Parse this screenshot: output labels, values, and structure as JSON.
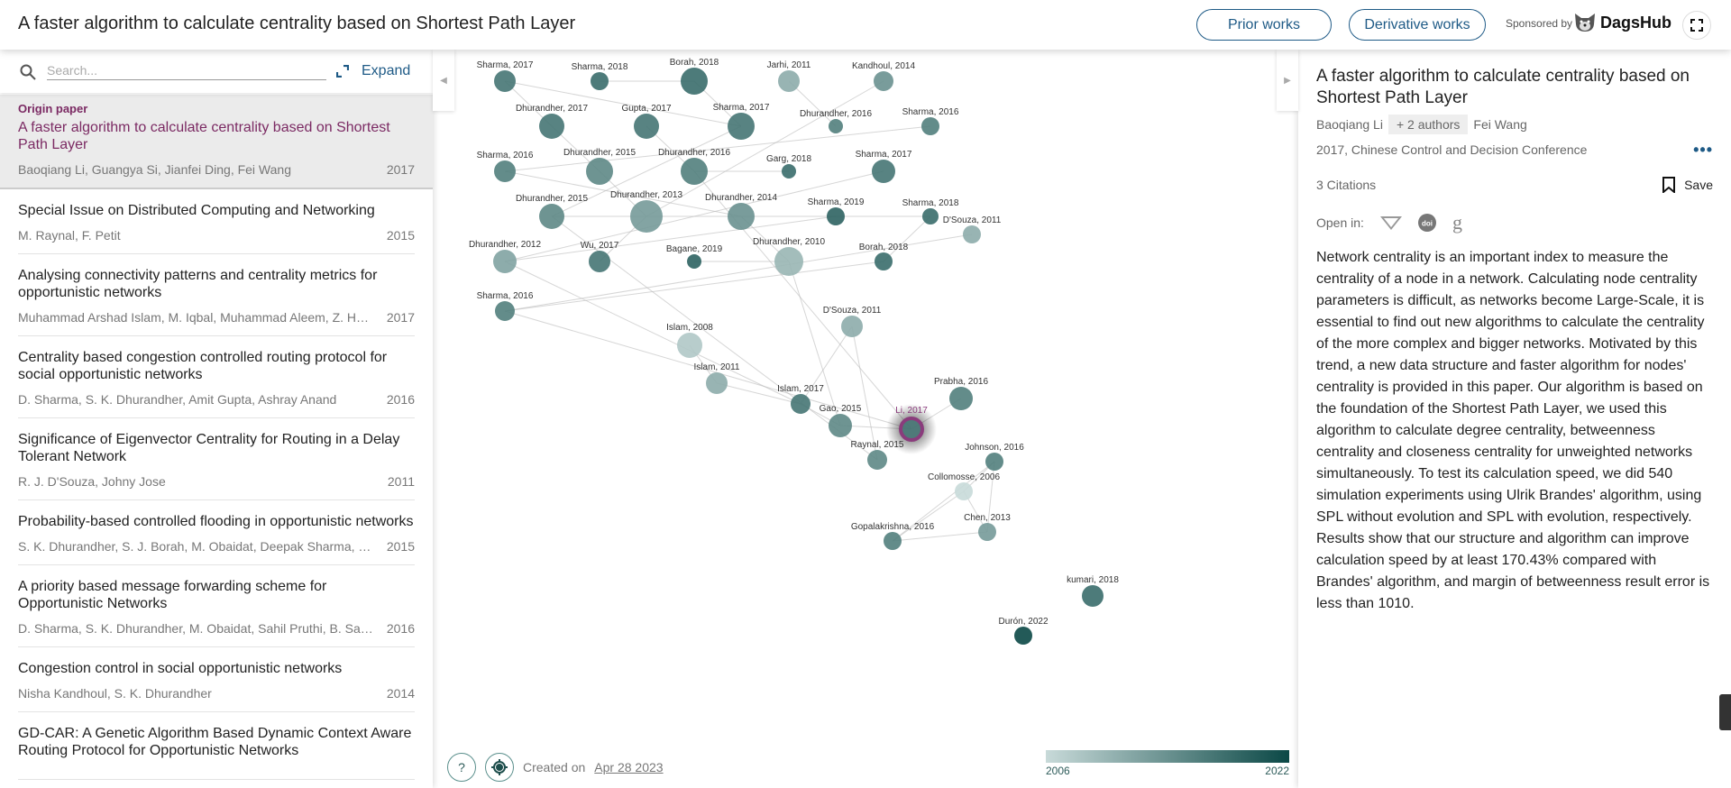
{
  "header": {
    "title": "A faster algorithm to calculate centrality based on Shortest Path Layer",
    "prior_works": "Prior works",
    "derivative_works": "Derivative works",
    "sponsored_by": "Sponsored by",
    "sponsor_name": "DagsHub"
  },
  "sidebar": {
    "search_placeholder": "Search...",
    "search_value": "",
    "expand_label": "Expand",
    "origin": {
      "label": "Origin paper",
      "title": "A faster algorithm to calculate centrality based on Shortest Path Layer",
      "authors": "Baoqiang Li, Guangya Si, Jianfei Ding, Fei Wang",
      "year": "2017"
    },
    "items": [
      {
        "title": "Special Issue on Distributed Computing and Networking",
        "authors": "M. Raynal, F. Petit",
        "year": "2015"
      },
      {
        "title": "Analysing connectivity patterns and centrality metrics for opportunistic networks",
        "authors": "Muhammad Arshad Islam, M. Iqbal, Muhammad Aleem, Z. Halim",
        "year": "2017"
      },
      {
        "title": "Centrality based congestion controlled routing protocol for social opportunistic networks",
        "authors": "D. Sharma, S. K. Dhurandher, Amit Gupta, Ashray Anand",
        "year": "2016"
      },
      {
        "title": "Significance of Eigenvector Centrality for Routing in a Delay Tolerant Network",
        "authors": "R. J. D'Souza, Johny Jose",
        "year": "2011"
      },
      {
        "title": "Probability-based controlled flooding in opportunistic networks",
        "authors": "S. K. Dhurandher, S. J. Borah, M. Obaidat, Deepak Sharma, Sahil…",
        "year": "2015"
      },
      {
        "title": "A priority based message forwarding scheme for Opportunistic Networks",
        "authors": "D. Sharma, S. K. Dhurandher, M. Obaidat, Sahil Pruthi, B. Sadoun",
        "year": "2016"
      },
      {
        "title": "Congestion control in social opportunistic networks",
        "authors": "Nisha Kandhoul, S. K. Dhurandher",
        "year": "2014"
      },
      {
        "title": "GD-CAR: A Genetic Algorithm Based Dynamic Context Aware Routing Protocol for Opportunistic Networks",
        "authors": "",
        "year": ""
      }
    ]
  },
  "graph": {
    "nodes": [
      {
        "label": "Sharma, 2017",
        "year": 2017
      },
      {
        "label": "Sharma, 2018",
        "year": 2018
      },
      {
        "label": "Borah, 2018",
        "year": 2018
      },
      {
        "label": "Jarhi, 2011",
        "year": 2011
      },
      {
        "label": "Kandhoul, 2014",
        "year": 2014
      },
      {
        "label": "Dhurandher, 2017",
        "year": 2017
      },
      {
        "label": "Gupta, 2017",
        "year": 2017
      },
      {
        "label": "Sharma, 2017",
        "year": 2017
      },
      {
        "label": "Dhurandher, 2016",
        "year": 2016
      },
      {
        "label": "Sharma, 2016",
        "year": 2016
      },
      {
        "label": "Sharma, 2016",
        "year": 2016
      },
      {
        "label": "Dhurandher, 2015",
        "year": 2015
      },
      {
        "label": "Dhurandher, 2016",
        "year": 2016
      },
      {
        "label": "Garg, 2018",
        "year": 2018
      },
      {
        "label": "Sharma, 2017",
        "year": 2017
      },
      {
        "label": "Dhurandher, 2015",
        "year": 2015
      },
      {
        "label": "Dhurandher, 2013",
        "year": 2013
      },
      {
        "label": "Dhurandher, 2014",
        "year": 2014
      },
      {
        "label": "Sharma, 2019",
        "year": 2019
      },
      {
        "label": "Sharma, 2018",
        "year": 2018
      },
      {
        "label": "Dhurandher, 2012",
        "year": 2012
      },
      {
        "label": "Wu, 2017",
        "year": 2017
      },
      {
        "label": "Bagane, 2019",
        "year": 2019
      },
      {
        "label": "Dhurandher, 2010",
        "year": 2010
      },
      {
        "label": "Borah, 2018",
        "year": 2018
      },
      {
        "label": "Sharma, 2016",
        "year": 2016
      },
      {
        "label": "D'Souza, 2011",
        "year": 2011
      },
      {
        "label": "D'Souza, 2011",
        "year": 2011
      },
      {
        "label": "Islam, 2008",
        "year": 2008
      },
      {
        "label": "Islam, 2011",
        "year": 2011
      },
      {
        "label": "Islam, 2017",
        "year": 2017
      },
      {
        "label": "Gao, 2015",
        "year": 2015
      },
      {
        "label": "Li, 2017",
        "year": 2017,
        "origin": true
      },
      {
        "label": "Prabha, 2016",
        "year": 2016
      },
      {
        "label": "Raynal, 2015",
        "year": 2015
      },
      {
        "label": "Johnson, 2016",
        "year": 2016
      },
      {
        "label": "Collomosse, 2006",
        "year": 2006
      },
      {
        "label": "Gopalakrishna, 2016",
        "year": 2016
      },
      {
        "label": "Chen, 2013",
        "year": 2013
      },
      {
        "label": "kumari, 2018",
        "year": 2018
      },
      {
        "label": "Durón, 2022",
        "year": 2022
      }
    ],
    "colors": {
      "min": "#c8dad9",
      "max": "#0b4846",
      "origin_ring": "#8a3c7c"
    },
    "legend": {
      "min_year": "2006",
      "max_year": "2022"
    }
  },
  "footer": {
    "created_prefix": "Created on",
    "created_date": "Apr 28 2023"
  },
  "details": {
    "title": "A faster algorithm to calculate centrality based on Shortest Path Layer",
    "first_author": "Baoqiang Li",
    "more_authors": "+ 2 authors",
    "last_author": "Fei Wang",
    "venue": "2017, Chinese Control and Decision Conference",
    "citations": "3 Citations",
    "save_label": "Save",
    "open_in_label": "Open in:",
    "abstract": "Network centrality is an important index to measure the centrality of a node in a network. Calculating node centrality parameters is difficult, as networks become Large-Scale, it is essential to find out new algorithms to calculate the centrality of the more complex and bigger networks. Motivated by this trend, a new data structure and faster algorithm for nodes' centrality is provided in this paper. Our algorithm is based on the foundation of the Shortest Path Layer, we used this algorithm to calculate degree centrality, betweenness centrality and closeness centrality for unweighted networks simultaneously. To test its calculation speed, we did 540 simulation experiments using Ulrik Brandes' algorithm, using SPL without evolution and SPL with evolution, respectively. Results show that our structure and algorithm can improve calculation speed by at least 170.43% compared with Brandes' algorithm, and margin of betweenness result error is less than 1010."
  }
}
